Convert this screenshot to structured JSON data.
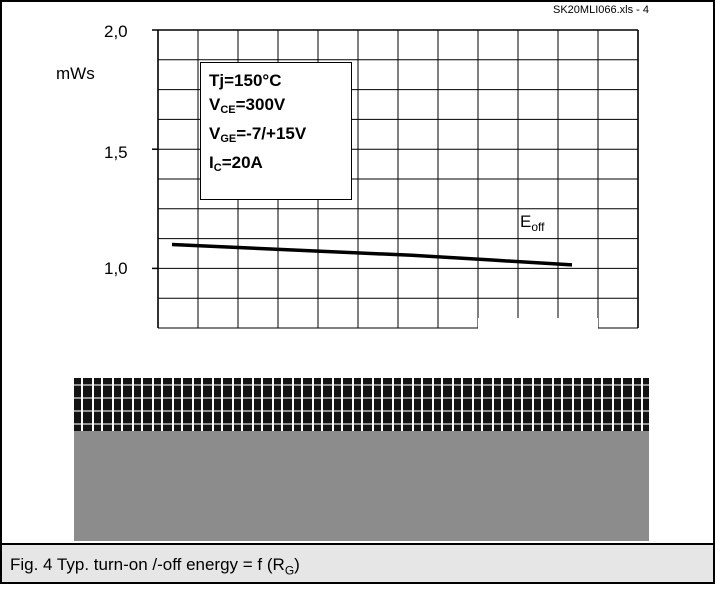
{
  "file_id": "SK20MLI066.xls - 4",
  "unit": "mWs",
  "conditions": {
    "tj": "Tj=150°C",
    "vce_prefix": "V",
    "vce_sub": "CE",
    "vce_value": "=300V",
    "vge_prefix": "V",
    "vge_sub": "GE",
    "vge_value": "=-7/+15V",
    "ic_prefix": "I",
    "ic_sub": "C",
    "ic_value": "=20A"
  },
  "caption": {
    "text": "Fig. 4 Typ. turn-on /-off energy = f (R",
    "sub": "G",
    "close": ")"
  },
  "chart_data": {
    "type": "line",
    "title": "",
    "xlabel": "",
    "ylabel": "mWs",
    "ylim": [
      0.75,
      2.0
    ],
    "y_ticks": [
      "2,0",
      "1,5",
      "1,0"
    ],
    "y_tick_values": [
      2.0,
      1.5,
      1.0
    ],
    "x_gridlines": 12,
    "y_gridlines_per_unit": 4,
    "grid": true,
    "series": [
      {
        "name_main": "E",
        "name_sub": "off",
        "x": [
          0,
          2,
          4,
          6,
          8,
          10
        ],
        "values": [
          1.1,
          1.085,
          1.07,
          1.055,
          1.035,
          1.015
        ]
      }
    ],
    "colors": {
      "line": "#000000",
      "grid": "#000000",
      "panel": "#8c8c8c",
      "caption_bg": "#e6e6e6"
    }
  }
}
